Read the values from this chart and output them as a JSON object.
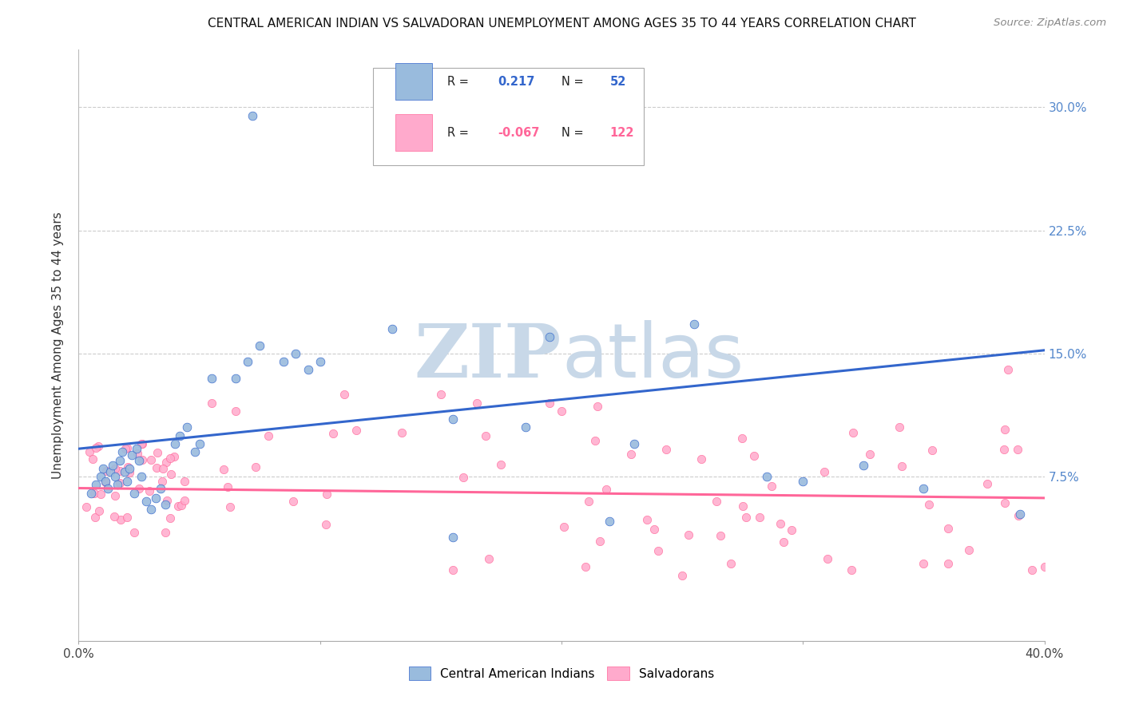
{
  "title": "CENTRAL AMERICAN INDIAN VS SALVADORAN UNEMPLOYMENT AMONG AGES 35 TO 44 YEARS CORRELATION CHART",
  "source": "Source: ZipAtlas.com",
  "ylabel": "Unemployment Among Ages 35 to 44 years",
  "ytick_labels": [
    "7.5%",
    "15.0%",
    "22.5%",
    "30.0%"
  ],
  "ytick_values": [
    0.075,
    0.15,
    0.225,
    0.3
  ],
  "xlim": [
    0.0,
    0.4
  ],
  "ylim": [
    -0.025,
    0.335
  ],
  "blue_R": 0.217,
  "blue_N": 52,
  "pink_R": -0.067,
  "pink_N": 122,
  "blue_color": "#99BBDD",
  "pink_color": "#FFAACC",
  "blue_line_color": "#3366CC",
  "pink_line_color": "#FF6699",
  "blue_tick_color": "#5588CC",
  "legend_label_blue": "Central American Indians",
  "legend_label_pink": "Salvadorans",
  "blue_line_start_y": 0.092,
  "blue_line_end_y": 0.152,
  "pink_line_start_y": 0.068,
  "pink_line_end_y": 0.062,
  "watermark_color": "#C8D8E8",
  "background_color": "#FFFFFF",
  "grid_color": "#CCCCCC"
}
